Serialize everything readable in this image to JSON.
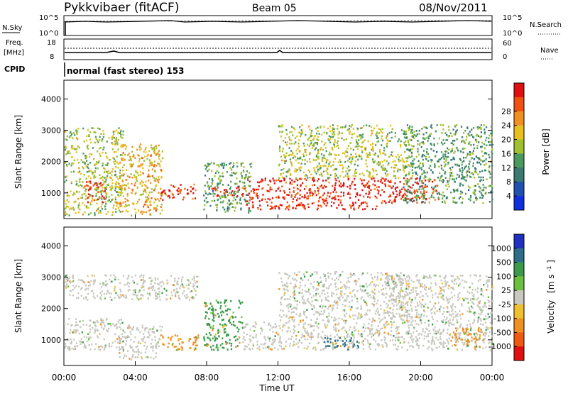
{
  "header": {
    "station": "Pykkvibaer (fitACF)",
    "beam": "Beam 05",
    "date": "08/Nov/2011"
  },
  "top_panels": {
    "nsky_label": "N.Sky",
    "nsky_ticks": [
      "10^5",
      "10^0"
    ],
    "nsearch_label": "N.Search",
    "nsearch_ticks": [
      "10^5",
      "10^0"
    ],
    "freq_label_1": "Freq.",
    "freq_label_2": "[MHz]",
    "freq_ticks": [
      "18",
      "8"
    ],
    "nave_label": "Nave",
    "nave_ticks": [
      "60",
      "0"
    ],
    "cpid_label": "CPID",
    "cpid_text": "normal (fast stereo) 153"
  },
  "chart_data": [
    {
      "type": "heatmap",
      "parameter": "Power",
      "ylabel": "Slant Range [km]",
      "xlabel": "Time UT",
      "x_range_hours": [
        0,
        24
      ],
      "ylim": [
        180,
        4600
      ],
      "yticks": [
        "1000",
        "2000",
        "3000",
        "4000"
      ],
      "colorbar_label": "Power [dB]",
      "colorbar_ticks": [
        "4",
        "8",
        "12",
        "16",
        "20",
        "24",
        "28"
      ],
      "colorbar_colors": [
        "#1030e0",
        "#2050b0",
        "#3a7a70",
        "#4a9a60",
        "#a0c030",
        "#e8c020",
        "#f09020",
        "#f05010",
        "#e01010"
      ],
      "echo_regions": [
        {
          "t_start": 0.0,
          "t_end": 3.3,
          "range_start": 300,
          "range_end": 3100,
          "level": 16
        },
        {
          "t_start": 1.1,
          "t_end": 2.3,
          "range_start": 700,
          "range_end": 1400,
          "level": 28
        },
        {
          "t_start": 3.0,
          "t_end": 5.5,
          "range_start": 300,
          "range_end": 2600,
          "level": 20
        },
        {
          "t_start": 5.3,
          "t_end": 7.4,
          "range_start": 800,
          "range_end": 1300,
          "level": 28
        },
        {
          "t_start": 7.8,
          "t_end": 10.5,
          "range_start": 400,
          "range_end": 2000,
          "level": 12
        },
        {
          "t_start": 8.2,
          "t_end": 10.2,
          "range_start": 900,
          "range_end": 1200,
          "level": 28
        },
        {
          "t_start": 10.2,
          "t_end": 17.5,
          "range_start": 500,
          "range_end": 1500,
          "level": 28
        },
        {
          "t_start": 12.0,
          "t_end": 19.5,
          "range_start": 1500,
          "range_end": 3200,
          "level": 16
        },
        {
          "t_start": 17.5,
          "t_end": 21.0,
          "range_start": 700,
          "range_end": 1500,
          "level": 28
        },
        {
          "t_start": 19.0,
          "t_end": 24.0,
          "range_start": 700,
          "range_end": 3200,
          "level": 12
        }
      ]
    },
    {
      "type": "heatmap",
      "parameter": "Velocity",
      "ylabel": "Slant Range [km]",
      "xlabel": "Time UT",
      "x_range_hours": [
        0,
        24
      ],
      "ylim": [
        180,
        4600
      ],
      "yticks": [
        "1000",
        "2000",
        "3000",
        "4000"
      ],
      "xticks": [
        "00:00",
        "04:00",
        "08:00",
        "12:00",
        "16:00",
        "20:00",
        "00:00"
      ],
      "colorbar_label": "Velocity",
      "colorbar_units": "[m s",
      "colorbar_units_sup": "-1",
      "colorbar_units_end": "]",
      "colorbar_ticks": [
        "1000",
        "500",
        "100",
        "25",
        "-25",
        "-100",
        "-500",
        "-1000"
      ],
      "colorbar_colors": [
        "#2030c0",
        "#2e6e8a",
        "#3a9a4a",
        "#6cc040",
        "#c8c8c0",
        "#f0c030",
        "#f09020",
        "#f05a10",
        "#e01010"
      ],
      "echo_regions": [
        {
          "t_start": 0.0,
          "t_end": 3.3,
          "range_start": 700,
          "range_end": 1700,
          "level": 9
        },
        {
          "t_start": 0.0,
          "t_end": 7.5,
          "range_start": 2300,
          "range_end": 3100,
          "level": -20
        },
        {
          "t_start": 3.0,
          "t_end": 5.5,
          "range_start": 400,
          "range_end": 1500,
          "level": -20
        },
        {
          "t_start": 5.5,
          "t_end": 7.5,
          "range_start": 700,
          "range_end": 1200,
          "level": -300
        },
        {
          "t_start": 7.8,
          "t_end": 10.0,
          "range_start": 700,
          "range_end": 2300,
          "level": 150
        },
        {
          "t_start": 10.0,
          "t_end": 18.0,
          "range_start": 700,
          "range_end": 1600,
          "level": -20
        },
        {
          "t_start": 14.5,
          "t_end": 16.5,
          "range_start": 700,
          "range_end": 1100,
          "level": 800
        },
        {
          "t_start": 12.0,
          "t_end": 19.5,
          "range_start": 1600,
          "range_end": 3200,
          "level": -20
        },
        {
          "t_start": 18.0,
          "t_end": 24.0,
          "range_start": 700,
          "range_end": 3100,
          "level": -20
        },
        {
          "t_start": 21.5,
          "t_end": 23.5,
          "range_start": 800,
          "range_end": 1400,
          "level": -300
        }
      ]
    }
  ]
}
